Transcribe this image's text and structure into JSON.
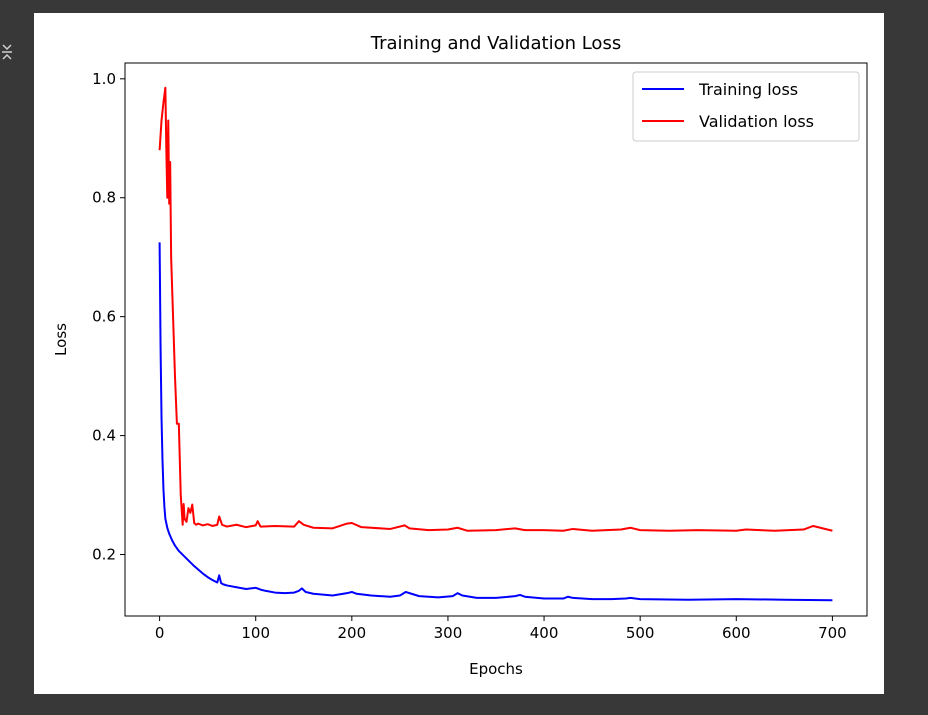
{
  "output_icon": "output-cell-icon",
  "chart_data": {
    "type": "line",
    "title": "Training and Validation Loss",
    "xlabel": "Epochs",
    "ylabel": "Loss",
    "xlim": [
      -36,
      736
    ],
    "ylim": [
      0.0966,
      1.0266
    ],
    "xticks": [
      0,
      100,
      200,
      300,
      400,
      500,
      600,
      700
    ],
    "yticks": [
      0.2,
      0.4,
      0.6,
      0.8,
      1.0
    ],
    "xtick_labels": [
      "0",
      "100",
      "200",
      "300",
      "400",
      "500",
      "600",
      "700"
    ],
    "ytick_labels": [
      "0.2",
      "0.4",
      "0.6",
      "0.8",
      "1.0"
    ],
    "grid": false,
    "legend_position": "upper right",
    "series": [
      {
        "name": "Training loss",
        "color": "#0000ff",
        "x": [
          0,
          1,
          2,
          3,
          4,
          5,
          6,
          8,
          10,
          13,
          16,
          20,
          25,
          30,
          35,
          40,
          45,
          50,
          55,
          60,
          62,
          64,
          66,
          70,
          80,
          90,
          100,
          105,
          110,
          120,
          130,
          140,
          145,
          148,
          152,
          160,
          180,
          195,
          200,
          205,
          220,
          240,
          250,
          256,
          262,
          270,
          290,
          305,
          310,
          315,
          330,
          350,
          370,
          375,
          380,
          400,
          420,
          425,
          430,
          450,
          470,
          485,
          490,
          500,
          550,
          600,
          650,
          700
        ],
        "y": [
          0.725,
          0.55,
          0.43,
          0.36,
          0.31,
          0.28,
          0.26,
          0.245,
          0.235,
          0.224,
          0.215,
          0.206,
          0.198,
          0.19,
          0.182,
          0.175,
          0.168,
          0.162,
          0.157,
          0.153,
          0.165,
          0.152,
          0.15,
          0.148,
          0.145,
          0.142,
          0.144,
          0.141,
          0.139,
          0.136,
          0.135,
          0.136,
          0.139,
          0.143,
          0.137,
          0.134,
          0.131,
          0.135,
          0.137,
          0.134,
          0.131,
          0.129,
          0.131,
          0.137,
          0.134,
          0.13,
          0.128,
          0.13,
          0.135,
          0.131,
          0.127,
          0.127,
          0.13,
          0.132,
          0.129,
          0.126,
          0.126,
          0.129,
          0.127,
          0.125,
          0.125,
          0.126,
          0.127,
          0.125,
          0.124,
          0.125,
          0.124,
          0.123
        ]
      },
      {
        "name": "Validation loss",
        "color": "#ff0000",
        "x": [
          0,
          2,
          4,
          6,
          7,
          8,
          9,
          10,
          11,
          12,
          14,
          16,
          18,
          20,
          22,
          24,
          25,
          26,
          28,
          30,
          32,
          34,
          36,
          38,
          40,
          45,
          50,
          55,
          60,
          62,
          65,
          70,
          80,
          90,
          100,
          102,
          105,
          120,
          140,
          145,
          150,
          160,
          180,
          195,
          200,
          210,
          240,
          255,
          260,
          280,
          300,
          310,
          320,
          350,
          370,
          380,
          400,
          420,
          430,
          450,
          480,
          490,
          500,
          530,
          560,
          600,
          610,
          640,
          670,
          680,
          700
        ],
        "y": [
          0.88,
          0.93,
          0.96,
          0.985,
          0.88,
          0.8,
          0.93,
          0.79,
          0.86,
          0.7,
          0.6,
          0.5,
          0.42,
          0.42,
          0.3,
          0.25,
          0.285,
          0.26,
          0.255,
          0.278,
          0.27,
          0.284,
          0.253,
          0.25,
          0.252,
          0.249,
          0.251,
          0.248,
          0.25,
          0.264,
          0.25,
          0.247,
          0.25,
          0.246,
          0.249,
          0.256,
          0.247,
          0.248,
          0.247,
          0.256,
          0.25,
          0.245,
          0.244,
          0.252,
          0.253,
          0.246,
          0.243,
          0.249,
          0.244,
          0.241,
          0.242,
          0.245,
          0.24,
          0.241,
          0.244,
          0.241,
          0.241,
          0.24,
          0.243,
          0.24,
          0.242,
          0.245,
          0.241,
          0.24,
          0.241,
          0.24,
          0.242,
          0.24,
          0.242,
          0.248,
          0.24
        ]
      }
    ]
  }
}
